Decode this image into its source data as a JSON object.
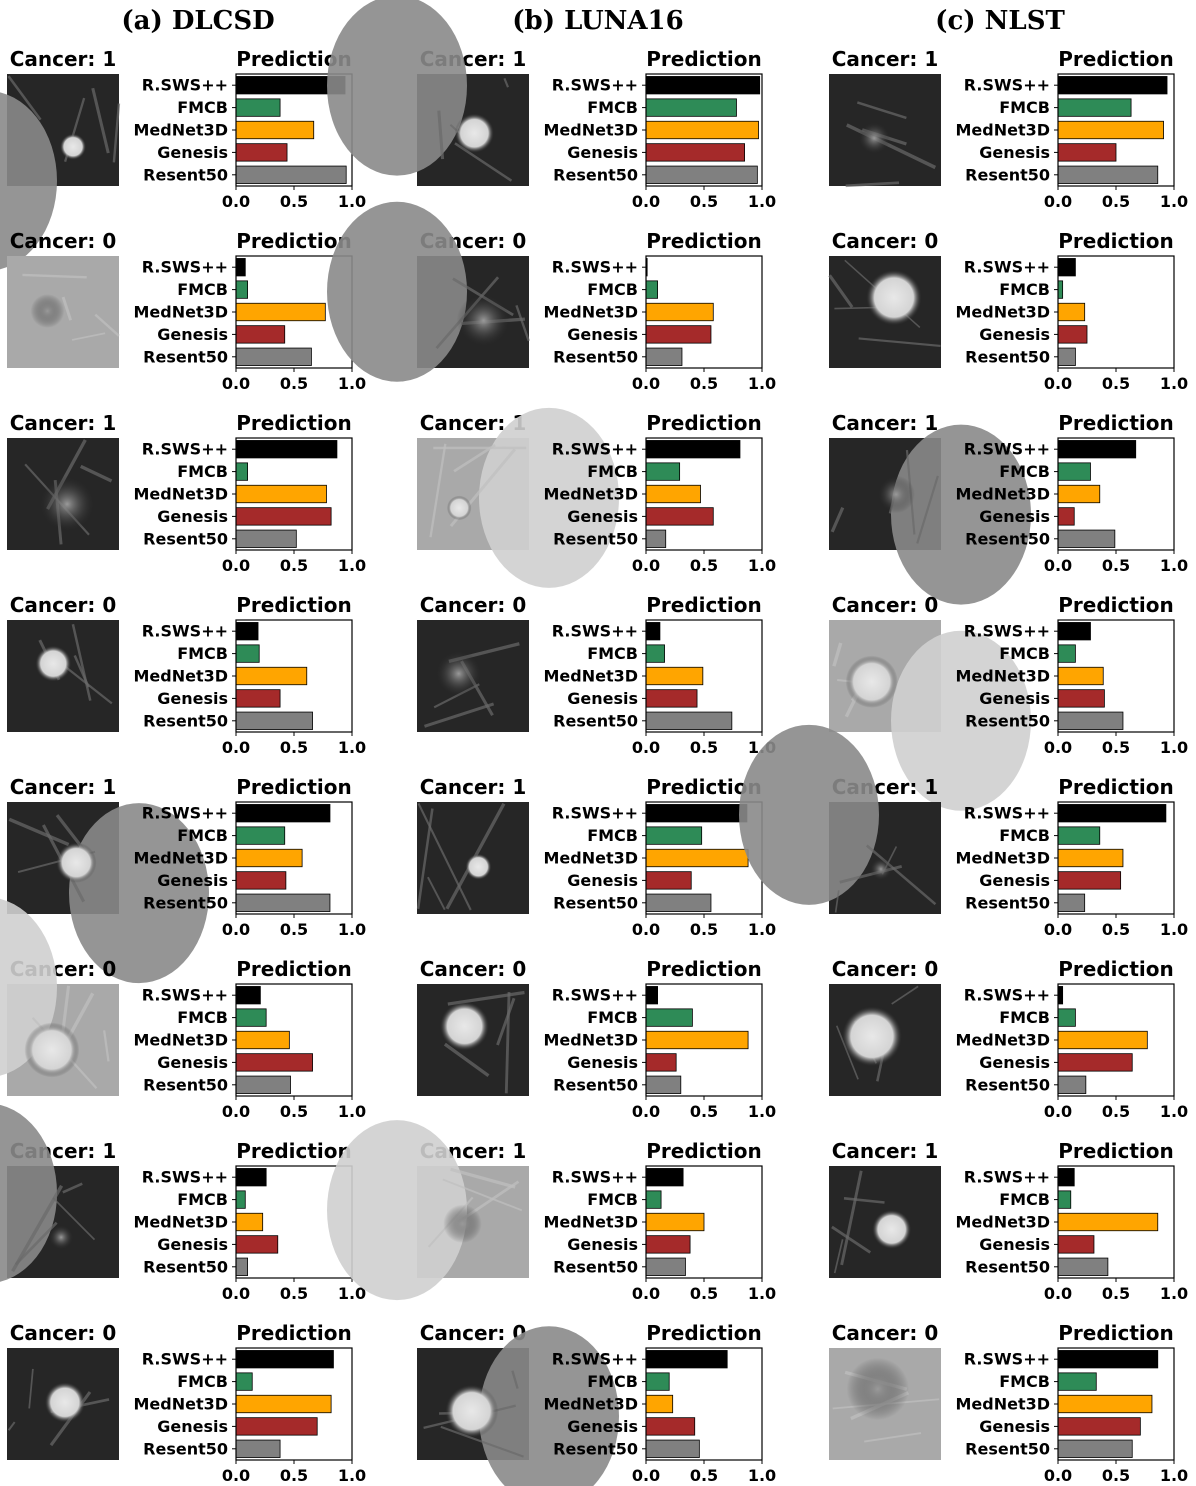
{
  "columns": [
    {
      "title": "(a) DLCSD"
    },
    {
      "title": "(b) LUNA16"
    },
    {
      "title": "(c) NLST"
    }
  ],
  "models": [
    "R.SWS++",
    "FMCB",
    "MedNet3D",
    "Genesis",
    "Resent50"
  ],
  "colors": {
    "R.SWS++": "#000000",
    "FMCB": "#2e8b57",
    "MedNet3D": "#ffa500",
    "Genesis": "#a52a2a",
    "Resent50": "#808080"
  },
  "panel_title": "Prediction",
  "xticks": [
    "0.0",
    "0.5",
    "1.0"
  ],
  "chart_data": [
    {
      "dataset": "(a) DLCSD",
      "type": "bar",
      "orientation": "horizontal",
      "xlim": [
        0,
        1
      ],
      "panels": [
        {
          "label": "Cancer: 1",
          "values": [
            0.94,
            0.38,
            0.67,
            0.44,
            0.95
          ]
        },
        {
          "label": "Cancer: 0",
          "values": [
            0.08,
            0.1,
            0.77,
            0.42,
            0.65
          ]
        },
        {
          "label": "Cancer: 1",
          "values": [
            0.87,
            0.1,
            0.78,
            0.82,
            0.52
          ]
        },
        {
          "label": "Cancer: 0",
          "values": [
            0.19,
            0.2,
            0.61,
            0.38,
            0.66
          ]
        },
        {
          "label": "Cancer: 1",
          "values": [
            0.81,
            0.42,
            0.57,
            0.43,
            0.81
          ]
        },
        {
          "label": "Cancer: 0",
          "values": [
            0.21,
            0.26,
            0.46,
            0.66,
            0.47
          ]
        },
        {
          "label": "Cancer: 1",
          "values": [
            0.26,
            0.08,
            0.23,
            0.36,
            0.1
          ]
        },
        {
          "label": "Cancer: 0",
          "values": [
            0.84,
            0.14,
            0.82,
            0.7,
            0.38
          ]
        }
      ]
    },
    {
      "dataset": "(b) LUNA16",
      "type": "bar",
      "orientation": "horizontal",
      "xlim": [
        0,
        1
      ],
      "panels": [
        {
          "label": "Cancer: 1",
          "values": [
            0.98,
            0.78,
            0.97,
            0.85,
            0.96
          ]
        },
        {
          "label": "Cancer: 0",
          "values": [
            0.01,
            0.1,
            0.58,
            0.56,
            0.31
          ]
        },
        {
          "label": "Cancer: 1",
          "values": [
            0.81,
            0.29,
            0.47,
            0.58,
            0.17
          ]
        },
        {
          "label": "Cancer: 0",
          "values": [
            0.12,
            0.16,
            0.49,
            0.44,
            0.74
          ]
        },
        {
          "label": "Cancer: 1",
          "values": [
            0.87,
            0.48,
            0.88,
            0.39,
            0.56
          ]
        },
        {
          "label": "Cancer: 0",
          "values": [
            0.1,
            0.4,
            0.88,
            0.26,
            0.3
          ]
        },
        {
          "label": "Cancer: 1",
          "values": [
            0.32,
            0.13,
            0.5,
            0.38,
            0.34
          ]
        },
        {
          "label": "Cancer: 0",
          "values": [
            0.7,
            0.2,
            0.23,
            0.42,
            0.46
          ]
        }
      ]
    },
    {
      "dataset": "(c) NLST",
      "type": "bar",
      "orientation": "horizontal",
      "xlim": [
        0,
        1
      ],
      "panels": [
        {
          "label": "Cancer: 1",
          "values": [
            0.94,
            0.63,
            0.91,
            0.5,
            0.86
          ]
        },
        {
          "label": "Cancer: 0",
          "values": [
            0.15,
            0.04,
            0.23,
            0.25,
            0.15
          ]
        },
        {
          "label": "Cancer: 1",
          "values": [
            0.67,
            0.28,
            0.36,
            0.14,
            0.49
          ]
        },
        {
          "label": "Cancer: 0",
          "values": [
            0.28,
            0.15,
            0.39,
            0.4,
            0.56
          ]
        },
        {
          "label": "Cancer: 1",
          "values": [
            0.93,
            0.36,
            0.56,
            0.54,
            0.23
          ]
        },
        {
          "label": "Cancer: 0",
          "values": [
            0.04,
            0.15,
            0.77,
            0.64,
            0.24
          ]
        },
        {
          "label": "Cancer: 1",
          "values": [
            0.14,
            0.11,
            0.86,
            0.31,
            0.43
          ]
        },
        {
          "label": "Cancer: 0",
          "values": [
            0.86,
            0.33,
            0.81,
            0.71,
            0.64
          ]
        }
      ]
    }
  ]
}
